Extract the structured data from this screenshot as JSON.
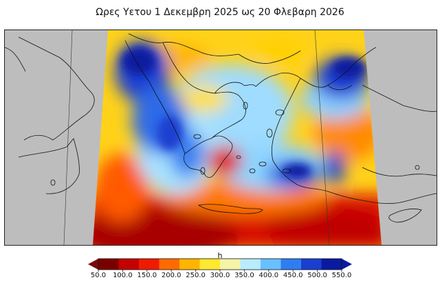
{
  "title": "Ωρες Υετου 1 Δεκεμβρη 2025 ως 20 Φλεβαρη 2026",
  "map": {
    "region": "Greece and Aegean Sea",
    "variable": "h",
    "land_outside_domain_color": "#bdbdbd",
    "coastline_color": "#111111"
  },
  "colorbar": {
    "label": "h",
    "min": 50.0,
    "max": 550.0,
    "ticks": [
      "50.0",
      "100.0",
      "150.0",
      "200.0",
      "250.0",
      "300.0",
      "350.0",
      "400.0",
      "450.0",
      "500.0",
      "550.0"
    ],
    "extend": "both",
    "under_color": "#7a0a0a",
    "over_color": "#0a1aa0",
    "colors": [
      "#7a0000",
      "#c40000",
      "#f01a00",
      "#ff6a00",
      "#ffb400",
      "#ffe830",
      "#f4f4a8",
      "#b8ecff",
      "#68c0ff",
      "#2f7df0",
      "#1a3fd0",
      "#0a1aa0"
    ]
  }
}
